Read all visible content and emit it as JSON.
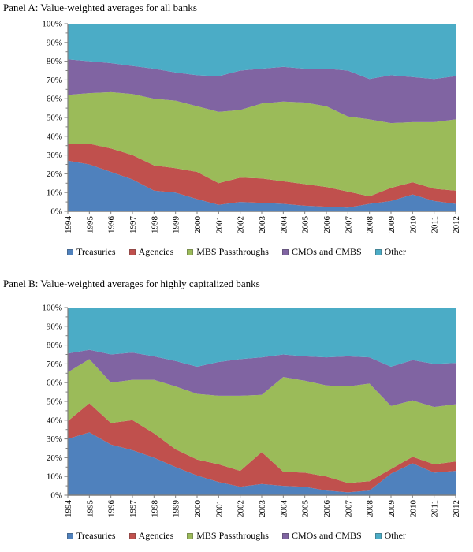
{
  "figure": {
    "background": "#ffffff",
    "axis_color": "#7f7f7f",
    "text_color": "#000000"
  },
  "chart_data": [
    {
      "panel": "A",
      "title": "Panel A: Value-weighted averages for all banks",
      "type": "area",
      "stacked": true,
      "units": "percent_of_total",
      "grid": false,
      "legend_position": "bottom",
      "ylim": [
        0,
        100
      ],
      "yticks": [
        "0%",
        "10%",
        "20%",
        "30%",
        "40%",
        "50%",
        "60%",
        "70%",
        "80%",
        "90%",
        "100%"
      ],
      "x": [
        "1994",
        "1995",
        "1996",
        "1997",
        "1998",
        "1999",
        "2000",
        "2001",
        "2002",
        "2003",
        "2004",
        "2005",
        "2006",
        "2007",
        "2008",
        "2009",
        "2010",
        "2011",
        "2012"
      ],
      "series": [
        {
          "name": "Treasuries",
          "color": "#4F81BD",
          "values": [
            27,
            25,
            21,
            17,
            11,
            10,
            6.5,
            3.5,
            5,
            4.5,
            4,
            3,
            2.5,
            2,
            4,
            5.5,
            9,
            5.5,
            4
          ]
        },
        {
          "name": "Agencies",
          "color": "#C0504D",
          "values": [
            9,
            11,
            12.5,
            13,
            13.5,
            13,
            14.5,
            11.5,
            13,
            13,
            12,
            11.5,
            10.5,
            8.5,
            4,
            7,
            6.5,
            6.5,
            7
          ]
        },
        {
          "name": "MBS Passthroughs",
          "color": "#9BBB59",
          "values": [
            26,
            27,
            30,
            32.5,
            35.5,
            36,
            35,
            38,
            36,
            40,
            42.5,
            43.5,
            43,
            40,
            41,
            34.5,
            32,
            35.5,
            38
          ]
        },
        {
          "name": "CMOs and CMBS",
          "color": "#8064A2",
          "values": [
            19,
            17,
            15.5,
            15,
            16,
            15,
            16.5,
            19,
            21,
            18.5,
            18.5,
            18,
            20,
            24.5,
            21.5,
            25.5,
            24,
            23,
            23
          ]
        },
        {
          "name": "Other",
          "color": "#4BACC6",
          "values": [
            19,
            20,
            21,
            22.5,
            24,
            26,
            27.5,
            28,
            25,
            24,
            23,
            24,
            24,
            25,
            29.5,
            27.5,
            28.5,
            29.5,
            28
          ]
        }
      ]
    },
    {
      "panel": "B",
      "title": "Panel B: Value-weighted averages for highly capitalized banks",
      "type": "area",
      "stacked": true,
      "units": "percent_of_total",
      "grid": false,
      "legend_position": "bottom",
      "ylim": [
        0,
        100
      ],
      "yticks": [
        "0%",
        "10%",
        "20%",
        "30%",
        "40%",
        "50%",
        "60%",
        "70%",
        "80%",
        "90%",
        "100%"
      ],
      "x": [
        "1994",
        "1995",
        "1996",
        "1997",
        "1998",
        "1999",
        "2000",
        "2001",
        "2002",
        "2003",
        "2004",
        "2005",
        "2006",
        "2007",
        "2008",
        "2009",
        "2010",
        "2011",
        "2012"
      ],
      "series": [
        {
          "name": "Treasuries",
          "color": "#4F81BD",
          "values": [
            30,
            33.5,
            27,
            24,
            20,
            15,
            10.5,
            7,
            4.5,
            6,
            5,
            4.5,
            2.5,
            1.5,
            2.5,
            11.5,
            17,
            12,
            13
          ]
        },
        {
          "name": "Agencies",
          "color": "#C0504D",
          "values": [
            9.5,
            15.5,
            11.5,
            16,
            13,
            9.5,
            8.5,
            9.5,
            8.5,
            17,
            7.5,
            7.5,
            7.5,
            5,
            5,
            2.5,
            3.5,
            4.5,
            5
          ]
        },
        {
          "name": "MBS Passthroughs",
          "color": "#9BBB59",
          "values": [
            26,
            23.5,
            21.5,
            21.5,
            28.5,
            33.5,
            35,
            36.5,
            40,
            30.5,
            50.5,
            49,
            48.5,
            51.5,
            52,
            33.5,
            30,
            30.5,
            30.5
          ]
        },
        {
          "name": "CMOs and CMBS",
          "color": "#8064A2",
          "values": [
            10,
            5,
            15,
            14.5,
            12.5,
            13.5,
            14.5,
            18,
            19.5,
            20,
            12,
            13,
            15,
            16,
            14,
            21,
            21.5,
            23,
            22
          ]
        },
        {
          "name": "Other",
          "color": "#4BACC6",
          "values": [
            24.5,
            22.5,
            25,
            24,
            26,
            28.5,
            31.5,
            29,
            27.5,
            26.5,
            25,
            26,
            26.5,
            26,
            26.5,
            31.5,
            28,
            30,
            29.5
          ]
        }
      ]
    }
  ]
}
